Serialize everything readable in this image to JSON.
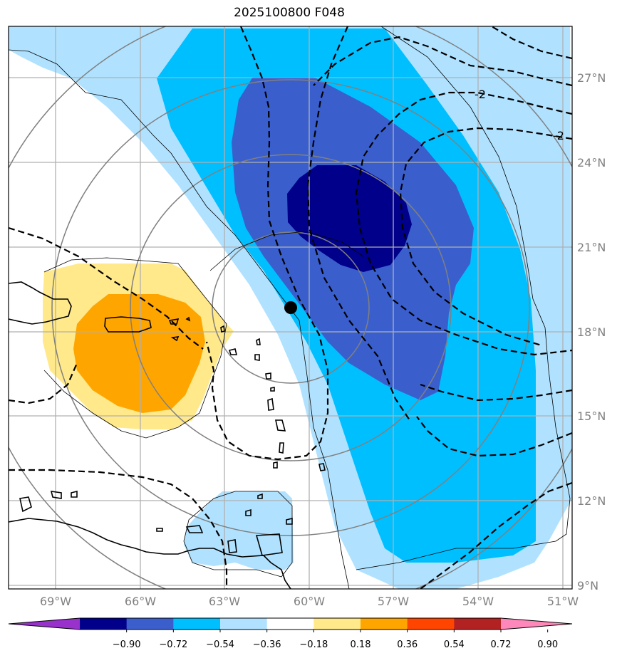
{
  "title": "2025100800 F048",
  "lat_ticks": [
    "27°N",
    "24°N",
    "21°N",
    "18°N",
    "15°N",
    "12°N",
    "9°N"
  ],
  "lon_ticks": [
    "69°W",
    "66°W",
    "63°W",
    "60°W",
    "57°W",
    "54°W",
    "51°W"
  ],
  "contour_labels": [
    "-2",
    "-2"
  ],
  "colorbar": {
    "tick_labels": [
      "−0.90",
      "−0.72",
      "−0.54",
      "−0.36",
      "−0.18",
      "0.18",
      "0.36",
      "0.54",
      "0.72",
      "0.90"
    ],
    "colors": [
      "#9932cc",
      "#00008b",
      "#3a5fcd",
      "#00bfff",
      "#b0e2ff",
      "#ffffff",
      "#ffe98a",
      "#ffa500",
      "#ff4500",
      "#b22222",
      "#ff88bb"
    ]
  },
  "fill_colors": {
    "light_blue": "#b0e2ff",
    "cyan": "#00bfff",
    "royal_blue": "#3a5fcd",
    "navy": "#00008b",
    "light_yellow": "#ffe98a",
    "orange": "#ffa500"
  }
}
